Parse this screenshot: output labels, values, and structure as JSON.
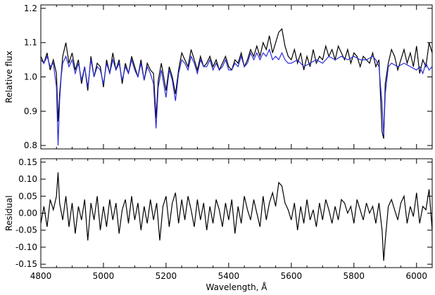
{
  "chart_data": [
    {
      "type": "line",
      "title": "",
      "xlabel": "",
      "ylabel": "Relative flux",
      "xlim": [
        4800,
        6050
      ],
      "ylim": [
        0.79,
        1.21
      ],
      "xticks": [
        4800,
        5000,
        5200,
        5400,
        5600,
        5800,
        6000
      ],
      "yticks": [
        0.8,
        0.9,
        1.0,
        1.1,
        1.2
      ],
      "ytick_labels": [
        "0.8",
        "0.9",
        "1.0",
        "1.1",
        "1.2"
      ],
      "show_xtick_labels": false,
      "grid": false,
      "series": [
        {
          "color": "#000000",
          "x": [
            4800,
            4810,
            4820,
            4830,
            4840,
            4850,
            4855,
            4860,
            4870,
            4880,
            4890,
            4900,
            4910,
            4920,
            4930,
            4940,
            4950,
            4960,
            4970,
            4980,
            4990,
            5000,
            5010,
            5020,
            5030,
            5040,
            5050,
            5060,
            5070,
            5080,
            5090,
            5100,
            5110,
            5120,
            5130,
            5140,
            5150,
            5160,
            5168,
            5175,
            5185,
            5200,
            5210,
            5220,
            5230,
            5240,
            5250,
            5260,
            5270,
            5280,
            5290,
            5300,
            5310,
            5320,
            5330,
            5340,
            5350,
            5360,
            5370,
            5380,
            5390,
            5400,
            5410,
            5420,
            5430,
            5440,
            5450,
            5460,
            5470,
            5480,
            5490,
            5500,
            5510,
            5520,
            5530,
            5540,
            5550,
            5560,
            5570,
            5580,
            5590,
            5600,
            5610,
            5620,
            5630,
            5640,
            5650,
            5660,
            5670,
            5680,
            5690,
            5700,
            5710,
            5720,
            5730,
            5740,
            5750,
            5760,
            5770,
            5780,
            5790,
            5800,
            5810,
            5820,
            5830,
            5840,
            5850,
            5860,
            5870,
            5880,
            5890,
            5895,
            5900,
            5910,
            5920,
            5930,
            5940,
            5950,
            5960,
            5970,
            5980,
            5990,
            6000,
            6010,
            6020,
            6030,
            6040,
            6050
          ],
          "y": [
            1.06,
            1.04,
            1.07,
            1.02,
            1.05,
            1.01,
            0.87,
            0.95,
            1.06,
            1.1,
            1.04,
            1.07,
            1.02,
            1.05,
            0.98,
            1.03,
            0.96,
            1.06,
            1.0,
            1.04,
            1.03,
            0.97,
            1.05,
            1.01,
            1.07,
            1.02,
            1.05,
            0.98,
            1.04,
            1.01,
            1.06,
            1.03,
            1.0,
            1.05,
            0.99,
            1.04,
            1.02,
            1.01,
            0.88,
            0.99,
            1.04,
            0.96,
            1.03,
            1.0,
            0.95,
            1.02,
            1.07,
            1.05,
            1.03,
            1.08,
            1.05,
            1.02,
            1.06,
            1.03,
            1.04,
            1.06,
            1.03,
            1.05,
            1.02,
            1.04,
            1.06,
            1.03,
            1.02,
            1.05,
            1.04,
            1.07,
            1.03,
            1.05,
            1.08,
            1.06,
            1.09,
            1.06,
            1.1,
            1.08,
            1.12,
            1.07,
            1.1,
            1.13,
            1.14,
            1.09,
            1.06,
            1.05,
            1.08,
            1.04,
            1.07,
            1.02,
            1.06,
            1.03,
            1.08,
            1.04,
            1.06,
            1.05,
            1.09,
            1.06,
            1.08,
            1.05,
            1.09,
            1.07,
            1.05,
            1.08,
            1.04,
            1.07,
            1.06,
            1.03,
            1.06,
            1.05,
            1.04,
            1.07,
            1.03,
            1.05,
            0.84,
            0.82,
            0.98,
            1.04,
            1.08,
            1.06,
            1.02,
            1.05,
            1.08,
            1.04,
            1.07,
            1.03,
            1.09,
            1.01,
            1.05,
            1.03,
            1.1,
            1.07
          ]
        },
        {
          "color": "#2a2ad8",
          "x": [
            4800,
            4810,
            4820,
            4830,
            4840,
            4850,
            4855,
            4860,
            4865,
            4870,
            4880,
            4890,
            4900,
            4910,
            4920,
            4930,
            4940,
            4950,
            4960,
            4970,
            4980,
            4990,
            5000,
            5010,
            5020,
            5030,
            5040,
            5050,
            5060,
            5070,
            5080,
            5090,
            5100,
            5110,
            5120,
            5130,
            5140,
            5150,
            5160,
            5168,
            5175,
            5185,
            5200,
            5210,
            5220,
            5230,
            5240,
            5250,
            5260,
            5270,
            5280,
            5290,
            5300,
            5310,
            5320,
            5330,
            5340,
            5350,
            5360,
            5370,
            5380,
            5390,
            5400,
            5410,
            5420,
            5430,
            5440,
            5450,
            5460,
            5470,
            5480,
            5490,
            5500,
            5510,
            5520,
            5530,
            5540,
            5550,
            5560,
            5570,
            5580,
            5590,
            5600,
            5620,
            5640,
            5660,
            5680,
            5700,
            5720,
            5740,
            5760,
            5780,
            5800,
            5820,
            5840,
            5860,
            5870,
            5880,
            5890,
            5895,
            5900,
            5910,
            5920,
            5940,
            5960,
            5980,
            6000,
            6010,
            6020,
            6030,
            6040,
            6050
          ],
          "y": [
            1.05,
            1.04,
            1.06,
            1.03,
            1.04,
            0.97,
            0.8,
            0.93,
            1.0,
            1.04,
            1.06,
            1.03,
            1.05,
            1.01,
            1.04,
            0.99,
            1.03,
            0.97,
            1.05,
            1.0,
            1.03,
            1.02,
            0.98,
            1.04,
            1.01,
            1.05,
            1.02,
            1.04,
            0.99,
            1.03,
            1.01,
            1.05,
            1.02,
            1.0,
            1.04,
            0.99,
            1.03,
            1.01,
            0.98,
            0.85,
            0.97,
            1.02,
            0.94,
            1.02,
            0.99,
            0.93,
            1.01,
            1.05,
            1.04,
            1.02,
            1.06,
            1.04,
            1.01,
            1.05,
            1.03,
            1.03,
            1.05,
            1.02,
            1.04,
            1.02,
            1.03,
            1.05,
            1.02,
            1.02,
            1.04,
            1.03,
            1.06,
            1.03,
            1.04,
            1.07,
            1.05,
            1.07,
            1.05,
            1.07,
            1.06,
            1.08,
            1.05,
            1.06,
            1.05,
            1.07,
            1.05,
            1.04,
            1.04,
            1.05,
            1.03,
            1.04,
            1.05,
            1.04,
            1.06,
            1.05,
            1.06,
            1.05,
            1.06,
            1.05,
            1.05,
            1.06,
            1.05,
            1.03,
            0.92,
            0.83,
            0.95,
            1.03,
            1.04,
            1.03,
            1.04,
            1.03,
            1.02,
            1.03,
            1.01,
            1.04,
            1.02,
            1.03
          ]
        }
      ]
    },
    {
      "type": "line",
      "title": "",
      "xlabel": "Wavelength, Å",
      "ylabel": "Residual",
      "xlim": [
        4800,
        6050
      ],
      "ylim": [
        -0.16,
        0.16
      ],
      "xticks": [
        4800,
        5000,
        5200,
        5400,
        5600,
        5800,
        6000
      ],
      "xtick_labels": [
        "4800",
        "5000",
        "5200",
        "5400",
        "5600",
        "5800",
        "6000"
      ],
      "yticks": [
        -0.15,
        -0.1,
        -0.05,
        0.0,
        0.05,
        0.1,
        0.15
      ],
      "ytick_labels": [
        "-0.15",
        "-0.10",
        "-0.05",
        "0.00",
        "0.05",
        "0.10",
        "0.15"
      ],
      "grid": false,
      "series": [
        {
          "color": "#000000",
          "x": [
            4800,
            4810,
            4820,
            4830,
            4840,
            4850,
            4855,
            4860,
            4870,
            4880,
            4890,
            4900,
            4910,
            4920,
            4930,
            4940,
            4950,
            4960,
            4970,
            4980,
            4990,
            5000,
            5010,
            5020,
            5030,
            5040,
            5050,
            5060,
            5070,
            5080,
            5090,
            5100,
            5110,
            5120,
            5130,
            5140,
            5150,
            5160,
            5170,
            5180,
            5190,
            5200,
            5210,
            5220,
            5230,
            5240,
            5250,
            5260,
            5270,
            5280,
            5290,
            5300,
            5310,
            5320,
            5330,
            5340,
            5350,
            5360,
            5370,
            5380,
            5390,
            5400,
            5410,
            5420,
            5430,
            5440,
            5450,
            5460,
            5470,
            5480,
            5490,
            5500,
            5510,
            5520,
            5530,
            5540,
            5550,
            5560,
            5570,
            5580,
            5590,
            5600,
            5610,
            5620,
            5630,
            5640,
            5650,
            5660,
            5670,
            5680,
            5690,
            5700,
            5710,
            5720,
            5730,
            5740,
            5750,
            5760,
            5770,
            5780,
            5790,
            5800,
            5810,
            5820,
            5830,
            5840,
            5850,
            5860,
            5870,
            5880,
            5890,
            5895,
            5900,
            5910,
            5920,
            5930,
            5940,
            5950,
            5960,
            5970,
            5980,
            5990,
            6000,
            6010,
            6020,
            6030,
            6040,
            6050
          ],
          "y": [
            -0.03,
            0.02,
            -0.04,
            0.04,
            0.01,
            0.05,
            0.12,
            0.03,
            -0.02,
            0.05,
            -0.04,
            0.03,
            -0.06,
            0.02,
            -0.02,
            0.04,
            -0.08,
            0.03,
            -0.02,
            0.05,
            -0.05,
            0.02,
            -0.04,
            0.04,
            -0.02,
            0.03,
            -0.06,
            0.01,
            0.04,
            -0.03,
            0.05,
            -0.02,
            0.03,
            -0.05,
            0.02,
            -0.03,
            0.04,
            -0.02,
            0.03,
            -0.08,
            0.02,
            0.05,
            -0.04,
            0.03,
            0.06,
            -0.03,
            0.04,
            -0.02,
            0.05,
            0.01,
            -0.04,
            0.04,
            -0.02,
            0.03,
            -0.05,
            0.02,
            -0.03,
            0.04,
            0.01,
            -0.04,
            0.03,
            -0.02,
            0.04,
            -0.06,
            0.02,
            -0.03,
            0.05,
            0.01,
            -0.02,
            0.04,
            0.0,
            -0.04,
            0.05,
            -0.02,
            0.03,
            0.06,
            0.02,
            0.09,
            0.08,
            0.03,
            0.01,
            -0.02,
            0.03,
            -0.05,
            0.02,
            -0.03,
            0.04,
            -0.02,
            0.01,
            -0.04,
            0.03,
            -0.02,
            0.04,
            0.01,
            -0.03,
            0.02,
            -0.02,
            0.04,
            0.03,
            0.0,
            0.02,
            -0.03,
            0.04,
            0.01,
            -0.02,
            0.03,
            0.0,
            0.02,
            -0.03,
            0.03,
            -0.05,
            -0.14,
            -0.08,
            0.02,
            0.04,
            0.01,
            -0.02,
            0.03,
            0.05,
            -0.03,
            0.02,
            -0.01,
            0.06,
            -0.03,
            0.02,
            0.01,
            0.07,
            -0.05
          ]
        }
      ]
    }
  ]
}
